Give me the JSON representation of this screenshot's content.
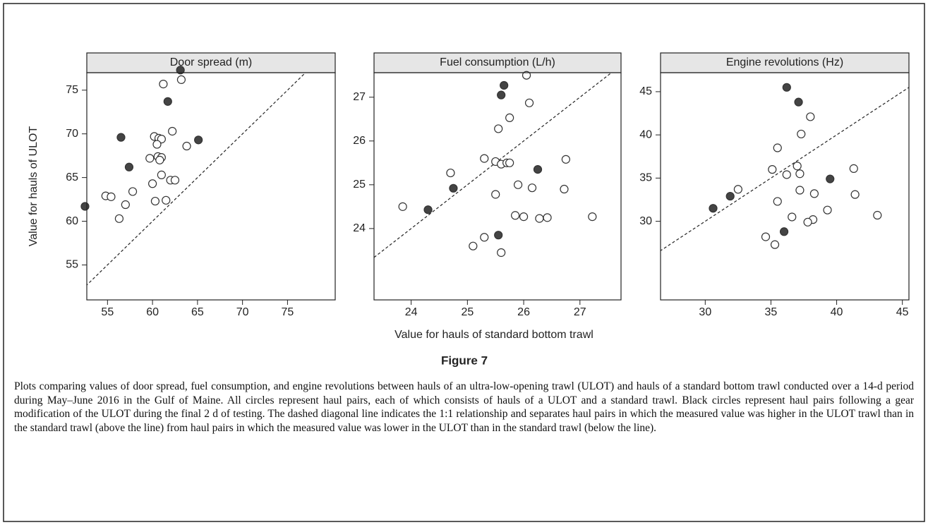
{
  "figure_label": "Figure 7",
  "xlabel": "Value for hauls of standard bottom trawl",
  "ylabel": "Value for hauls of ULOT",
  "caption": "Plots comparing values of door spread, fuel consumption, and engine revolutions between hauls of an ultra-low-opening trawl (ULOT) and hauls of a standard bottom trawl conducted over a 14-d period during May–June 2016 in the Gulf of Maine. All circles represent haul pairs, each of which consists of hauls of a ULOT and a standard trawl. Black circles represent haul pairs following a gear modification of the ULOT during the final 2 d of testing. The dashed diagonal line indicates the 1:1 relationship and separates haul pairs in which the measured value was higher in the ULOT trawl than in the standard trawl (above the line) from haul pairs in which the measured value was lower in the ULOT than in the standard trawl (below the line).",
  "chart_data": [
    {
      "type": "scatter",
      "title": "Door spread (m)",
      "diagonal": true,
      "xlim": [
        52.7,
        80.3
      ],
      "ylim": [
        51,
        77
      ],
      "xticks": [
        55,
        60,
        65,
        70,
        75
      ],
      "yticks": [
        55,
        60,
        65,
        70,
        75
      ],
      "series": [
        {
          "color": "#ffffff",
          "x": [
            63.2,
            61.2,
            62.2,
            60.2,
            60.7,
            61.0,
            60.5,
            63.8,
            59.7,
            60.6,
            61.0,
            60.8,
            61.0,
            60.0,
            62.0,
            62.5,
            54.8,
            55.4,
            57.8,
            57.0,
            60.3,
            61.5,
            56.3
          ],
          "values": [
            76.2,
            75.7,
            70.3,
            69.7,
            69.5,
            69.4,
            68.8,
            68.6,
            67.2,
            67.4,
            67.3,
            67.0,
            65.3,
            64.3,
            64.7,
            64.7,
            62.9,
            62.8,
            63.4,
            61.9,
            62.3,
            62.4,
            60.3
          ]
        },
        {
          "color": "#444444",
          "x": [
            63.1,
            61.7,
            56.5,
            65.1,
            57.4,
            52.5
          ],
          "values": [
            77.3,
            73.7,
            69.6,
            69.3,
            66.2,
            61.7
          ]
        }
      ]
    },
    {
      "type": "scatter",
      "title": "Fuel consumption (L/h)",
      "diagonal": true,
      "xlim": [
        23.34,
        27.73
      ],
      "ylim": [
        22.37,
        27.56
      ],
      "xticks": [
        24,
        25,
        26,
        27
      ],
      "yticks": [
        24,
        25,
        26,
        27
      ],
      "series": [
        {
          "color": "#ffffff",
          "x": [
            26.05,
            26.1,
            25.75,
            25.55,
            25.3,
            25.5,
            25.6,
            25.7,
            25.75,
            26.75,
            24.7,
            25.9,
            26.15,
            26.72,
            25.5,
            23.85,
            25.85,
            26.0,
            26.28,
            26.42,
            27.22,
            25.3,
            25.1,
            25.6
          ],
          "values": [
            27.5,
            26.87,
            26.53,
            26.28,
            25.6,
            25.53,
            25.47,
            25.5,
            25.5,
            25.58,
            25.27,
            25.0,
            24.93,
            24.9,
            24.78,
            24.5,
            24.3,
            24.27,
            24.23,
            24.25,
            24.27,
            23.8,
            23.6,
            23.45
          ]
        },
        {
          "color": "#444444",
          "x": [
            25.65,
            25.6,
            26.25,
            24.75,
            24.3,
            25.55
          ],
          "values": [
            27.27,
            27.05,
            25.35,
            24.92,
            24.43,
            23.85
          ]
        }
      ]
    },
    {
      "type": "scatter",
      "title": "Engine revolutions (Hz)",
      "diagonal": true,
      "xlim": [
        26.6,
        45.5
      ],
      "ylim": [
        20.9,
        47.2
      ],
      "xticks": [
        30,
        35,
        40,
        45
      ],
      "yticks": [
        30,
        35,
        40,
        45
      ],
      "series": [
        {
          "color": "#ffffff",
          "x": [
            38.0,
            37.3,
            35.5,
            37.0,
            35.1,
            36.2,
            37.2,
            41.3,
            37.2,
            32.5,
            38.3,
            41.4,
            35.5,
            39.3,
            36.6,
            38.2,
            37.8,
            43.1,
            34.6,
            35.3
          ],
          "values": [
            42.1,
            40.1,
            38.5,
            36.4,
            36.0,
            35.4,
            35.5,
            36.1,
            33.6,
            33.7,
            33.2,
            33.1,
            32.3,
            31.3,
            30.5,
            30.2,
            29.9,
            30.7,
            28.2,
            27.3
          ]
        },
        {
          "color": "#444444",
          "x": [
            36.2,
            37.1,
            39.5,
            31.9,
            30.6,
            36.0
          ],
          "values": [
            45.5,
            43.8,
            34.9,
            32.9,
            31.5,
            28.8
          ]
        }
      ]
    }
  ]
}
